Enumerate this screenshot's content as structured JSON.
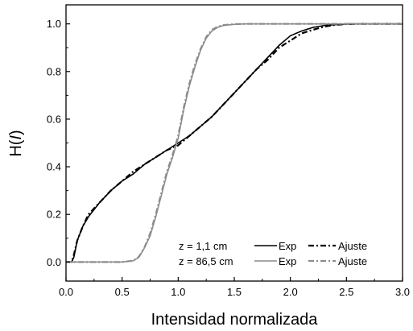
{
  "chart_data": {
    "type": "line",
    "xlabel": "Intensidad normalizada",
    "ylabel_main": "H(",
    "ylabel_italic": "I",
    "ylabel_close": ")",
    "xlim": [
      0.0,
      3.0
    ],
    "ylim": [
      -0.08,
      1.08
    ],
    "x_ticks": [
      "0.0",
      "0.5",
      "1.0",
      "1.5",
      "2.0",
      "2.5",
      "3.0"
    ],
    "x_tick_values": [
      0.0,
      0.5,
      1.0,
      1.5,
      2.0,
      2.5,
      3.0
    ],
    "y_ticks": [
      "0.0",
      "0.2",
      "0.4",
      "0.6",
      "0.8",
      "1.0"
    ],
    "y_tick_values": [
      0.0,
      0.2,
      0.4,
      0.6,
      0.8,
      1.0
    ],
    "grid": false,
    "legend_placement": "bottom-right",
    "legend": {
      "row1_label": "z = 1,1 cm",
      "row2_label": "z = 86,5 cm",
      "exp_label": "Exp",
      "fit_label": "Ajuste"
    },
    "colors": {
      "near": "#000000",
      "far": "#8c8c8c"
    },
    "series": [
      {
        "name": "z = 1,1 cm Exp",
        "group": "near",
        "style": "solid",
        "x": [
          0.0,
          0.05,
          0.07,
          0.1,
          0.15,
          0.2,
          0.3,
          0.4,
          0.5,
          0.6,
          0.7,
          0.8,
          0.9,
          1.0,
          1.1,
          1.2,
          1.3,
          1.4,
          1.5,
          1.6,
          1.7,
          1.8,
          1.9,
          2.0,
          2.1,
          2.2,
          2.3,
          2.4,
          2.5,
          2.6,
          2.8,
          3.0
        ],
        "y": [
          0.0,
          0.0,
          0.02,
          0.09,
          0.15,
          0.19,
          0.25,
          0.3,
          0.34,
          0.37,
          0.41,
          0.44,
          0.47,
          0.5,
          0.53,
          0.57,
          0.61,
          0.66,
          0.71,
          0.76,
          0.81,
          0.86,
          0.91,
          0.95,
          0.97,
          0.985,
          0.993,
          0.997,
          0.999,
          1.0,
          1.0,
          1.0
        ]
      },
      {
        "name": "z = 1,1 cm Ajuste",
        "group": "near",
        "style": "dashdot",
        "x": [
          0.0,
          0.05,
          0.07,
          0.1,
          0.15,
          0.2,
          0.3,
          0.4,
          0.5,
          0.6,
          0.7,
          0.8,
          0.9,
          1.0,
          1.1,
          1.2,
          1.3,
          1.4,
          1.5,
          1.6,
          1.7,
          1.8,
          1.9,
          2.0,
          2.1,
          2.2,
          2.3,
          2.4,
          2.5,
          2.6,
          2.8,
          3.0
        ],
        "y": [
          0.0,
          0.0,
          0.03,
          0.09,
          0.15,
          0.2,
          0.25,
          0.3,
          0.34,
          0.38,
          0.41,
          0.44,
          0.47,
          0.49,
          0.53,
          0.57,
          0.61,
          0.66,
          0.71,
          0.76,
          0.81,
          0.85,
          0.9,
          0.93,
          0.96,
          0.975,
          0.988,
          0.996,
          0.999,
          1.0,
          1.0,
          1.0
        ]
      },
      {
        "name": "z = 86,5 cm Exp",
        "group": "far",
        "style": "solid",
        "x": [
          0.0,
          0.5,
          0.6,
          0.65,
          0.7,
          0.75,
          0.8,
          0.85,
          0.9,
          0.95,
          1.0,
          1.05,
          1.1,
          1.15,
          1.2,
          1.25,
          1.3,
          1.35,
          1.4,
          1.5,
          1.6,
          1.8,
          2.0,
          3.0
        ],
        "y": [
          0.0,
          0.0,
          0.005,
          0.02,
          0.06,
          0.11,
          0.19,
          0.28,
          0.37,
          0.44,
          0.52,
          0.64,
          0.74,
          0.82,
          0.89,
          0.94,
          0.97,
          0.985,
          0.993,
          0.998,
          1.0,
          1.0,
          1.0,
          1.0
        ]
      },
      {
        "name": "z = 86,5 cm Ajuste",
        "group": "far",
        "style": "dashdot",
        "x": [
          0.0,
          0.5,
          0.6,
          0.65,
          0.7,
          0.75,
          0.8,
          0.85,
          0.9,
          0.95,
          1.0,
          1.05,
          1.1,
          1.15,
          1.2,
          1.25,
          1.3,
          1.35,
          1.4,
          1.5,
          1.6,
          1.8,
          2.0,
          3.0
        ],
        "y": [
          0.0,
          0.0,
          0.006,
          0.022,
          0.062,
          0.12,
          0.2,
          0.29,
          0.38,
          0.45,
          0.53,
          0.65,
          0.75,
          0.83,
          0.895,
          0.945,
          0.975,
          0.988,
          0.995,
          0.999,
          1.0,
          1.0,
          1.0,
          1.0
        ]
      }
    ]
  }
}
